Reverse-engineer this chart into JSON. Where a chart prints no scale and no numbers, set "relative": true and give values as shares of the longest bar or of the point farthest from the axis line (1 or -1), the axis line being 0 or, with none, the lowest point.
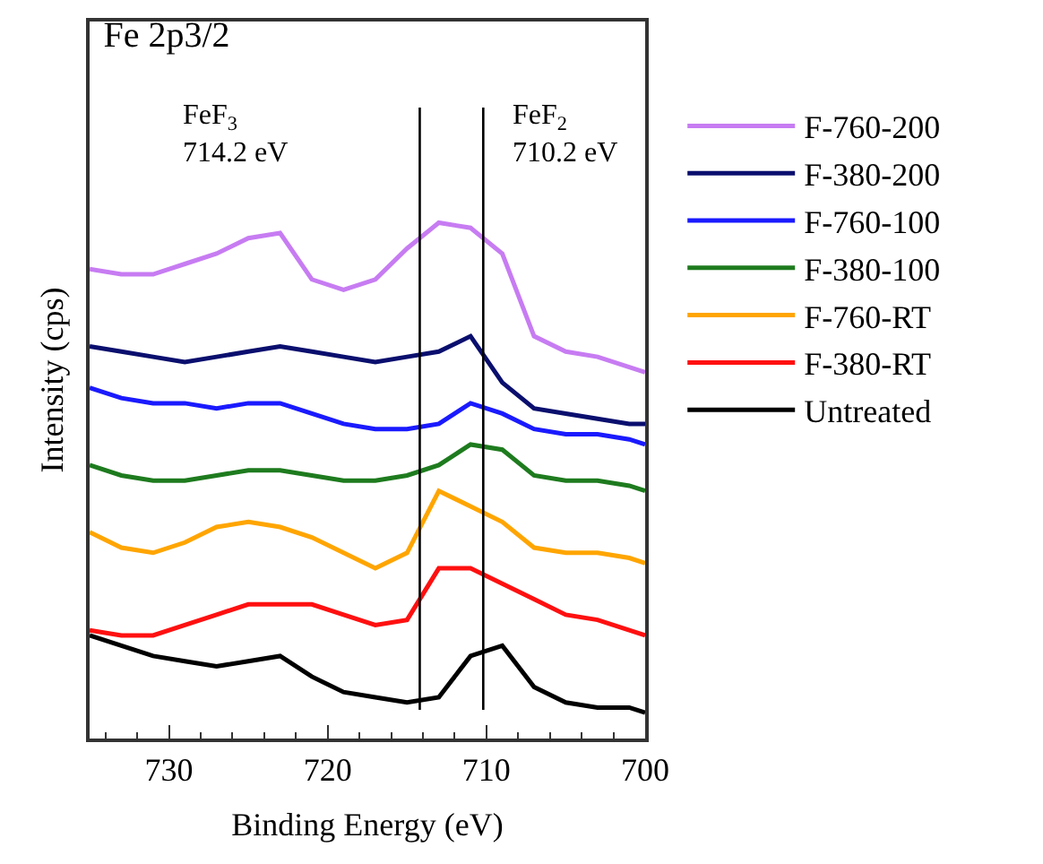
{
  "chart_data": {
    "type": "line",
    "relative": true,
    "title": "Fe 2p3/2",
    "xlabel": "Binding Energy (eV)",
    "ylabel": "Intensity (cps)",
    "x": [
      735,
      733,
      731,
      729,
      727,
      725,
      723,
      721,
      719,
      717,
      715,
      713,
      711,
      709,
      707,
      705,
      703,
      701,
      700
    ],
    "xlim": [
      735,
      700
    ],
    "xticks": [
      730,
      {
        "value": 728,
        "label": null
      },
      {
        "value": 726,
        "label": null
      },
      {
        "value": 724,
        "label": null
      },
      {
        "value": 722,
        "label": null
      },
      720,
      {
        "value": 718,
        "label": null
      },
      {
        "value": 716,
        "label": null
      },
      {
        "value": 714,
        "label": null
      },
      {
        "value": 712,
        "label": null
      },
      710,
      {
        "value": 708,
        "label": null
      },
      {
        "value": 706,
        "label": null
      },
      {
        "value": 704,
        "label": null
      },
      {
        "value": 702,
        "label": null
      },
      700,
      {
        "value": 732,
        "label": null
      },
      {
        "value": 734,
        "label": null
      }
    ],
    "legend": "right",
    "marker": "none",
    "line_style": "solid",
    "series": [
      {
        "name": "F-760-200",
        "color": "#c77cf2",
        "values": [
          0.91,
          0.9,
          0.9,
          0.92,
          0.94,
          0.97,
          0.98,
          0.89,
          0.87,
          0.89,
          0.95,
          1.0,
          0.99,
          0.94,
          0.78,
          0.75,
          0.74,
          0.72,
          0.71
        ]
      },
      {
        "name": "F-380-200",
        "color": "#0a0f6e",
        "values": [
          0.76,
          0.75,
          0.74,
          0.73,
          0.74,
          0.75,
          0.76,
          0.75,
          0.74,
          0.73,
          0.74,
          0.75,
          0.78,
          0.69,
          0.64,
          0.63,
          0.62,
          0.61,
          0.61
        ]
      },
      {
        "name": "F-760-100",
        "color": "#1a1aff",
        "values": [
          0.68,
          0.66,
          0.65,
          0.65,
          0.64,
          0.65,
          0.65,
          0.63,
          0.61,
          0.6,
          0.6,
          0.61,
          0.65,
          0.63,
          0.6,
          0.59,
          0.59,
          0.58,
          0.57
        ]
      },
      {
        "name": "F-380-100",
        "color": "#1e7b1e",
        "values": [
          0.53,
          0.51,
          0.5,
          0.5,
          0.51,
          0.52,
          0.52,
          0.51,
          0.5,
          0.5,
          0.51,
          0.53,
          0.57,
          0.56,
          0.51,
          0.5,
          0.5,
          0.49,
          0.48
        ]
      },
      {
        "name": "F-760-RT",
        "color": "#ffa500",
        "values": [
          0.4,
          0.37,
          0.36,
          0.38,
          0.41,
          0.42,
          0.41,
          0.39,
          0.36,
          0.33,
          0.36,
          0.48,
          0.45,
          0.42,
          0.37,
          0.36,
          0.36,
          0.35,
          0.34
        ]
      },
      {
        "name": "F-380-RT",
        "color": "#ff1010",
        "values": [
          0.21,
          0.2,
          0.2,
          0.22,
          0.24,
          0.26,
          0.26,
          0.26,
          0.24,
          0.22,
          0.23,
          0.33,
          0.33,
          0.3,
          0.27,
          0.24,
          0.23,
          0.21,
          0.2
        ]
      },
      {
        "name": "Untreated",
        "color": "#000000",
        "values": [
          0.2,
          0.18,
          0.16,
          0.15,
          0.14,
          0.15,
          0.16,
          0.12,
          0.09,
          0.08,
          0.07,
          0.08,
          0.16,
          0.18,
          0.1,
          0.07,
          0.06,
          0.06,
          0.05
        ]
      }
    ],
    "ref_lines": [
      {
        "axis": "x",
        "value": 714.2,
        "color": "#000000",
        "line_style": "solid"
      },
      {
        "axis": "x",
        "value": 710.2,
        "color": "#000000",
        "line_style": "solid"
      }
    ],
    "annotations": [
      "FeF$_{3}$\n714.2 eV",
      "FeF$_{2}$\n710.2 eV"
    ]
  }
}
